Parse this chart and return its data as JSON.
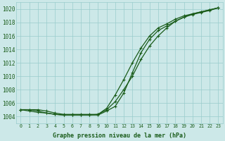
{
  "title": "Graphe pression niveau de la mer (hPa)",
  "bg_color": "#cce8e8",
  "grid_color": "#99cccc",
  "line_color": "#1a5c1a",
  "xlim": [
    -0.5,
    23.5
  ],
  "ylim": [
    1003.0,
    1021.0
  ],
  "yticks": [
    1004,
    1006,
    1008,
    1010,
    1012,
    1014,
    1016,
    1018,
    1020
  ],
  "xticks": [
    0,
    1,
    2,
    3,
    4,
    5,
    6,
    7,
    8,
    9,
    10,
    11,
    12,
    13,
    14,
    15,
    16,
    17,
    18,
    19,
    20,
    21,
    22,
    23
  ],
  "series": [
    [
      1005.0,
      1005.0,
      1005.0,
      1004.8,
      1004.5,
      1004.3,
      1004.3,
      1004.3,
      1004.3,
      1004.3,
      1005.0,
      1006.2,
      1008.0,
      1010.0,
      1012.5,
      1014.5,
      1016.0,
      1017.2,
      1018.2,
      1018.8,
      1019.3,
      1019.6,
      1019.9,
      1020.2
    ],
    [
      1005.0,
      1004.8,
      1004.6,
      1004.5,
      1004.3,
      1004.2,
      1004.2,
      1004.2,
      1004.2,
      1004.3,
      1005.2,
      1007.2,
      1009.5,
      1012.0,
      1014.2,
      1016.0,
      1017.2,
      1017.8,
      1018.5,
      1019.0,
      1019.3,
      1019.6,
      1019.9,
      1020.2
    ],
    [
      1005.0,
      1005.0,
      1004.8,
      1004.5,
      1004.3,
      1004.2,
      1004.2,
      1004.2,
      1004.2,
      1004.2,
      1004.8,
      1005.5,
      1007.5,
      1010.5,
      1013.5,
      1015.5,
      1016.8,
      1017.5,
      1018.2,
      1018.8,
      1019.2,
      1019.5,
      1019.8,
      1020.2
    ]
  ],
  "ylabel_fontsize": 5.5,
  "xlabel_fontsize": 5.5,
  "tick_fontsize": 4.8,
  "title_fontsize": 6.0
}
